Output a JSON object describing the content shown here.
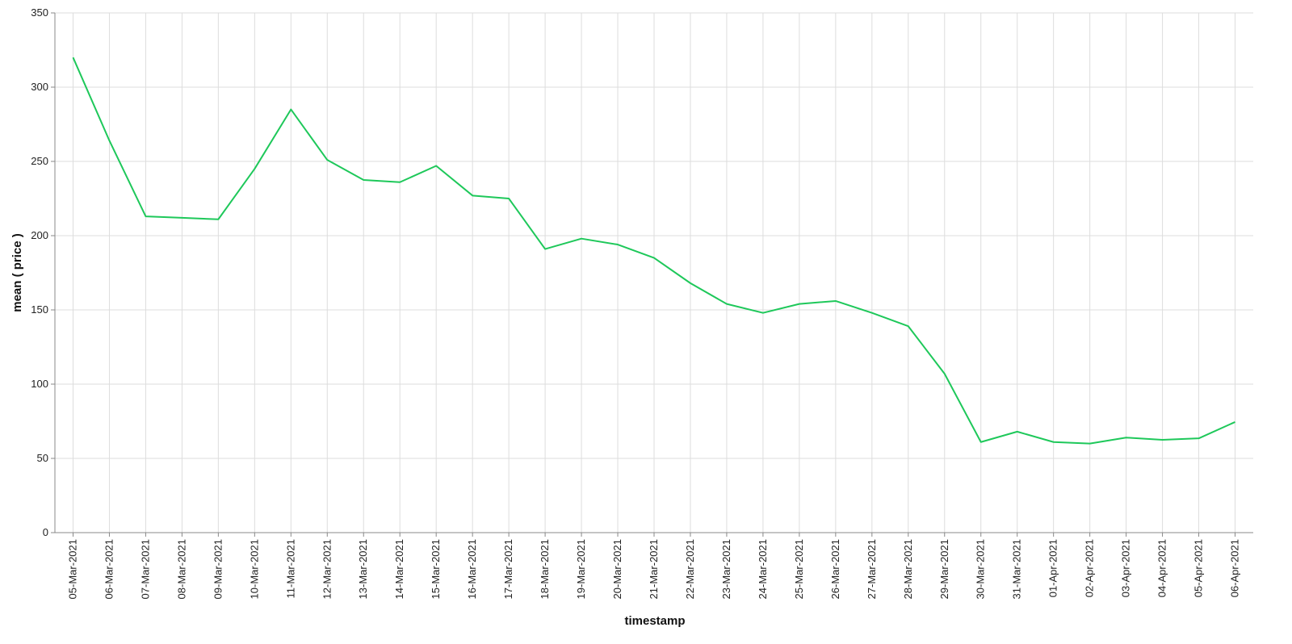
{
  "chart_data": {
    "type": "line",
    "x_label": "timestamp",
    "y_label": "mean ( price )",
    "categories": [
      "05-Mar-2021",
      "06-Mar-2021",
      "07-Mar-2021",
      "08-Mar-2021",
      "09-Mar-2021",
      "10-Mar-2021",
      "11-Mar-2021",
      "12-Mar-2021",
      "13-Mar-2021",
      "14-Mar-2021",
      "15-Mar-2021",
      "16-Mar-2021",
      "17-Mar-2021",
      "18-Mar-2021",
      "19-Mar-2021",
      "20-Mar-2021",
      "21-Mar-2021",
      "22-Mar-2021",
      "23-Mar-2021",
      "24-Mar-2021",
      "25-Mar-2021",
      "26-Mar-2021",
      "27-Mar-2021",
      "28-Mar-2021",
      "29-Mar-2021",
      "30-Mar-2021",
      "31-Mar-2021",
      "01-Apr-2021",
      "02-Apr-2021",
      "03-Apr-2021",
      "04-Apr-2021",
      "05-Apr-2021",
      "06-Apr-2021"
    ],
    "values": [
      320,
      264,
      213,
      212,
      211,
      245,
      285,
      251,
      237.5,
      236,
      247,
      227,
      225,
      191,
      198,
      194,
      185,
      168,
      154,
      148,
      154,
      156,
      148,
      139,
      107,
      61,
      68,
      61,
      60,
      64,
      62.5,
      63.5,
      74.5
    ],
    "color": "#1ec85a",
    "ylim": [
      0,
      350
    ],
    "yticks": [
      0,
      50,
      100,
      150,
      200,
      250,
      300,
      350
    ],
    "grid": true
  }
}
